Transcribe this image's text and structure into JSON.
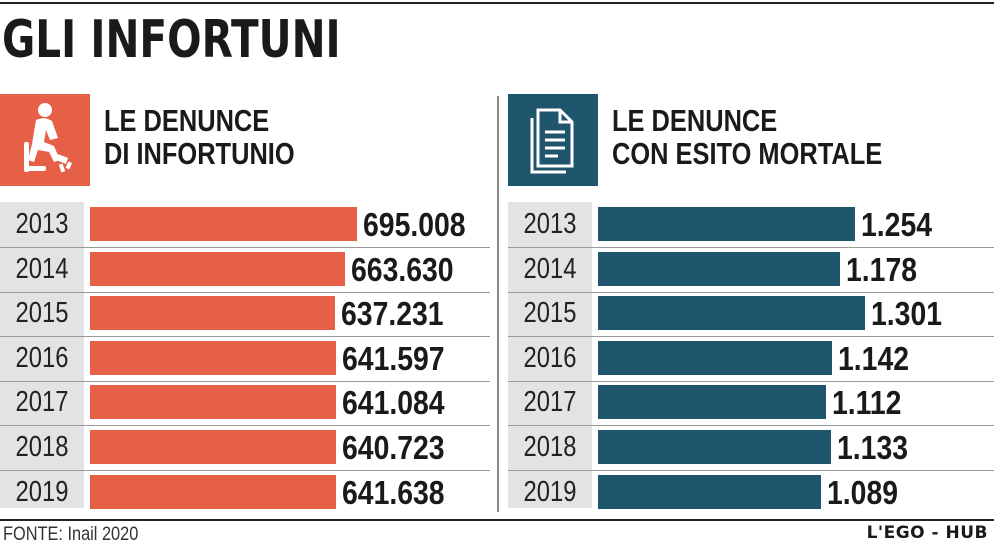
{
  "title": "GLI INFORTUNI",
  "colors": {
    "left_accent": "#e65f47",
    "right_accent": "#1f566e",
    "year_bg": "#e2e3e5"
  },
  "chart_data": [
    {
      "type": "bar",
      "orientation": "horizontal",
      "title_lines": [
        "LE DENUNCE",
        "DI INFORTUNIO"
      ],
      "icon": "injured-worker-icon",
      "categories": [
        "2013",
        "2014",
        "2015",
        "2016",
        "2017",
        "2018",
        "2019"
      ],
      "values": [
        695008,
        663630,
        637231,
        641597,
        641084,
        640723,
        641638
      ],
      "value_labels": [
        "695.008",
        "663.630",
        "637.231",
        "641.597",
        "641.084",
        "640.723",
        "641.638"
      ],
      "color": "#e65f47",
      "xlim": [
        0,
        695008
      ]
    },
    {
      "type": "bar",
      "orientation": "horizontal",
      "title_lines": [
        "LE DENUNCE",
        "CON ESITO MORTALE"
      ],
      "icon": "document-icon",
      "categories": [
        "2013",
        "2014",
        "2015",
        "2016",
        "2017",
        "2018",
        "2019"
      ],
      "values": [
        1254,
        1178,
        1301,
        1142,
        1112,
        1133,
        1089
      ],
      "value_labels": [
        "1.254",
        "1.178",
        "1.301",
        "1.142",
        "1.112",
        "1.133",
        "1.089"
      ],
      "color": "#1f566e",
      "xlim": [
        0,
        1301
      ]
    }
  ],
  "footer": {
    "source": "FONTE: Inail 2020",
    "brand": "L'EGO - HUB"
  }
}
